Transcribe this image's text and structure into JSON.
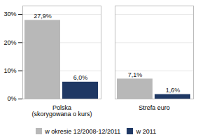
{
  "chart_data": {
    "type": "bar",
    "categories": [
      "Polska\n(skorygowana o kurs)",
      "Strefa euro"
    ],
    "series": [
      {
        "name": "w okresie 12/2008-12/2011",
        "color": "#b8b8b8",
        "values": [
          27.9,
          7.1
        ],
        "value_labels": [
          "27,9%",
          "7,1%"
        ]
      },
      {
        "name": "w 2011",
        "color": "#1f3864",
        "values": [
          6.0,
          1.6
        ],
        "value_labels": [
          "6,0%",
          "1,6%"
        ]
      }
    ],
    "ylim": [
      0,
      33
    ],
    "yticks": [
      {
        "value": 0,
        "label": "0%"
      },
      {
        "value": 10,
        "label": "10%"
      },
      {
        "value": 20,
        "label": "20%"
      },
      {
        "value": 30,
        "label": "30%"
      }
    ],
    "grid": true,
    "legend": "bottom",
    "data_labels": true
  }
}
